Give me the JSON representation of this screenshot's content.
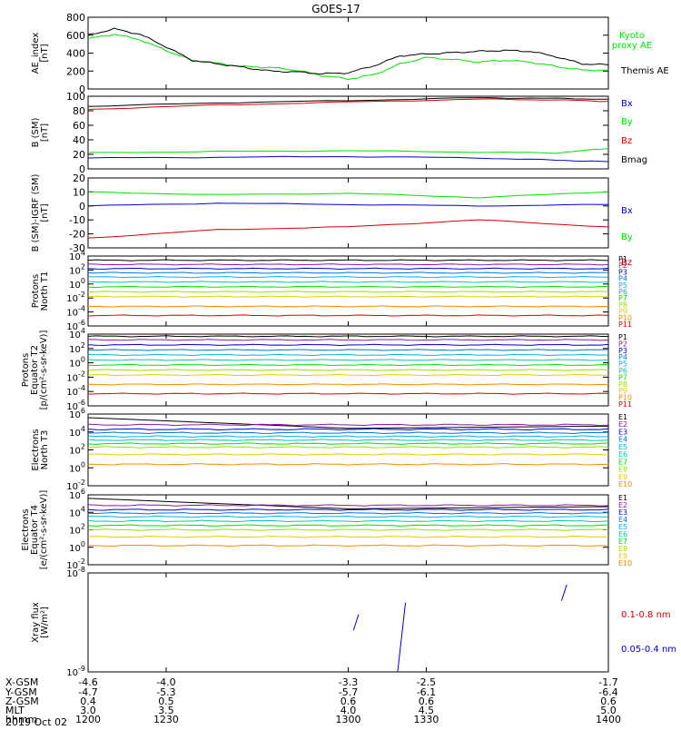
{
  "title": "GOES-17",
  "date": "2019 Oct 02",
  "colors": {
    "black": "#000000",
    "red": "#d10000",
    "green": "#00e000",
    "blue": "#0000d0",
    "p": [
      "#000000",
      "#8a1aa6",
      "#0000d0",
      "#0076d8",
      "#00b2e8",
      "#00c8b0",
      "#00e000",
      "#9ae000",
      "#f0c800",
      "#ff8a00",
      "#e00000"
    ],
    "e": [
      "#000000",
      "#8a1aa6",
      "#0000d0",
      "#0076d8",
      "#00b2e8",
      "#00c8b0",
      "#00e000",
      "#9ae000",
      "#f0c800",
      "#ff8a00",
      "#e00000"
    ]
  },
  "x_axis": {
    "range": [
      1200,
      1400
    ],
    "ticks": [
      1200,
      1230,
      1300,
      1330,
      1400
    ],
    "row_labels": [
      "X-GSM",
      "Y-GSM",
      "Z-GSM",
      "MLT",
      "hhmm"
    ],
    "rows": [
      [
        "-4.6",
        "-4.0",
        "-3.3",
        "-2.5",
        "-1.7"
      ],
      [
        "-4.7",
        "-5.3",
        "-5.7",
        "-6.1",
        "-6.4"
      ],
      [
        "0.4",
        "0.5",
        "0.6",
        "0.6",
        "0.6"
      ],
      [
        "3.0",
        "3.5",
        "4.0",
        "4.5",
        "5.0"
      ],
      [
        "1200",
        "1230",
        "1300",
        "1330",
        "1400"
      ]
    ]
  },
  "chart_data": [
    {
      "id": "ae",
      "type": "line",
      "ylabel": "AE_index\n[nT]",
      "ylim": [
        0,
        800
      ],
      "yticks": [
        "0",
        "200",
        "400",
        "600",
        "800"
      ],
      "series": [
        {
          "name": "Kyoto\nproxy AE",
          "color": "green",
          "x": [
            1200,
            1210,
            1220,
            1230,
            1240,
            1250,
            1260,
            1270,
            1280,
            1290,
            1300,
            1310,
            1320,
            1330,
            1340,
            1350,
            1360,
            1370,
            1380,
            1390,
            1400
          ],
          "y": [
            560,
            610,
            550,
            430,
            320,
            285,
            250,
            240,
            210,
            150,
            110,
            160,
            280,
            350,
            330,
            300,
            320,
            300,
            250,
            210,
            210
          ]
        },
        {
          "name": "Themis AE",
          "color": "black",
          "x": [
            1200,
            1210,
            1220,
            1230,
            1240,
            1250,
            1260,
            1270,
            1280,
            1290,
            1300,
            1310,
            1320,
            1330,
            1340,
            1350,
            1360,
            1370,
            1380,
            1390,
            1400
          ],
          "y": [
            600,
            670,
            610,
            470,
            320,
            280,
            240,
            200,
            190,
            170,
            180,
            260,
            370,
            390,
            405,
            420,
            430,
            420,
            360,
            280,
            270
          ]
        }
      ]
    },
    {
      "id": "b",
      "type": "line",
      "ylabel": "B (SM)\n[nT]",
      "ylim": [
        0,
        100
      ],
      "yticks": [
        "0",
        "20",
        "40",
        "60",
        "80",
        "100"
      ],
      "series": [
        {
          "name": "Bx",
          "color": "blue",
          "x": [
            1200,
            1250,
            1300,
            1350,
            1380,
            1400
          ],
          "y": [
            15,
            16,
            17,
            15,
            12,
            10
          ]
        },
        {
          "name": "By",
          "color": "green",
          "x": [
            1200,
            1250,
            1300,
            1350,
            1380,
            1400
          ],
          "y": [
            22,
            24,
            25,
            23,
            22,
            28
          ]
        },
        {
          "name": "Bz",
          "color": "red",
          "x": [
            1200,
            1250,
            1300,
            1350,
            1380,
            1400
          ],
          "y": [
            82,
            88,
            92,
            96,
            95,
            93
          ]
        },
        {
          "name": "Bmag",
          "color": "black",
          "x": [
            1200,
            1250,
            1300,
            1350,
            1380,
            1400
          ],
          "y": [
            86,
            91,
            94,
            98,
            97,
            96
          ]
        }
      ]
    },
    {
      "id": "bdiff",
      "type": "line",
      "ylabel": "B (SM)-IGRF (SM)\n[nT]",
      "ylim": [
        -30,
        20
      ],
      "yticks": [
        "-30",
        "-20",
        "-10",
        "0",
        "10",
        "20"
      ],
      "series": [
        {
          "name": "Bx",
          "color": "blue",
          "x": [
            1200,
            1250,
            1300,
            1350,
            1400
          ],
          "y": [
            0,
            2,
            1,
            0,
            1
          ]
        },
        {
          "name": "By",
          "color": "green",
          "x": [
            1200,
            1250,
            1300,
            1350,
            1400
          ],
          "y": [
            10,
            8,
            9,
            6,
            10
          ]
        },
        {
          "name": "Bz",
          "color": "red",
          "x": [
            1200,
            1250,
            1300,
            1350,
            1400
          ],
          "y": [
            -23,
            -17,
            -15,
            -10,
            -15
          ]
        }
      ]
    },
    {
      "id": "pn",
      "type": "line",
      "log": true,
      "ylabel": "Protons\nNorth T1",
      "ylim": [
        -6,
        4
      ],
      "ylabels": [
        {
          "e": "4"
        },
        {
          "e": "2"
        },
        {
          "e": "0"
        },
        {
          "e": "-2"
        },
        {
          "e": "-4"
        },
        {
          "e": "-6"
        }
      ],
      "legend": [
        "P1",
        "P2",
        "P3",
        "P4",
        "P5",
        "P6",
        "P7",
        "P8",
        "P9",
        "P10",
        "P11"
      ],
      "levels": [
        3.4,
        2.8,
        2.2,
        1.6,
        1.0,
        0.3,
        -0.4,
        -1.1,
        -1.8,
        -3.2,
        -4.5
      ]
    },
    {
      "id": "pe",
      "type": "line",
      "log": true,
      "ylabel": "Protons\nEquator T2\n[p/(cm²-s-sr-keV)]",
      "ylim": [
        -6,
        4
      ],
      "ylabels": [
        {
          "e": "4"
        },
        {
          "e": "2"
        },
        {
          "e": "0"
        },
        {
          "e": "-2"
        },
        {
          "e": "-4"
        },
        {
          "e": "-6"
        }
      ],
      "legend": [
        "P1",
        "P2",
        "P3",
        "P4",
        "P5",
        "P6",
        "P7",
        "P8",
        "P9",
        "P10",
        "P11"
      ],
      "levels": [
        3.7,
        3.2,
        2.5,
        1.8,
        1.1,
        0.4,
        -0.3,
        -1.0,
        -1.7,
        -3.0,
        -4.3
      ]
    },
    {
      "id": "en",
      "type": "line",
      "log": true,
      "ylabel": "Electrons\nNorth T3",
      "ylim": [
        -2,
        6
      ],
      "ylabels": [
        {
          "e": "6"
        },
        {
          "e": "4"
        },
        {
          "e": "2"
        },
        {
          "e": "0"
        },
        {
          "e": "-2"
        }
      ],
      "legend": [
        "E1",
        "E2",
        "E3",
        "E4",
        "E5",
        "E6",
        "E7",
        "E8",
        "E9",
        "E10"
      ],
      "levels": [
        5.6,
        4.8,
        4.3,
        3.9,
        3.5,
        3.1,
        2.7,
        2.3,
        1.5,
        0.4
      ]
    },
    {
      "id": "ee",
      "type": "line",
      "log": true,
      "ylabel": "Electrons\nEquator T4\n[e/(cm²-s-sr-keV)]",
      "ylim": [
        -2,
        6
      ],
      "ylabels": [
        {
          "e": "6"
        },
        {
          "e": "4"
        },
        {
          "e": "2"
        },
        {
          "e": "0"
        },
        {
          "e": "-2"
        }
      ],
      "legend": [
        "E1",
        "E2",
        "E3",
        "E4",
        "E5",
        "E6",
        "E7",
        "E8",
        "E9",
        "E10"
      ],
      "levels": [
        5.6,
        4.8,
        4.3,
        3.9,
        3.5,
        3.0,
        2.5,
        2.0,
        1.2,
        0.2
      ]
    },
    {
      "id": "xray",
      "type": "line",
      "log": true,
      "ylabel": "Xray flux\n[W/m²]",
      "ylim": [
        -9,
        -8
      ],
      "ylabels": [
        {
          "e": "-8"
        },
        {
          "e": "-9"
        }
      ],
      "series": [
        {
          "name": "0.1-0.8 nm",
          "color": "red",
          "x": [],
          "y": []
        },
        {
          "name": "0.05-0.4 nm",
          "color": "blue",
          "segments": [
            {
              "x": [
                1302,
                1304
              ],
              "y": [
                -8.58,
                -8.42
              ]
            },
            {
              "x": [
                1319,
                1322
              ],
              "y": [
                -9.0,
                -8.3
              ]
            },
            {
              "x": [
                1382,
                1384
              ],
              "y": [
                -8.28,
                -8.12
              ]
            }
          ]
        }
      ]
    }
  ]
}
